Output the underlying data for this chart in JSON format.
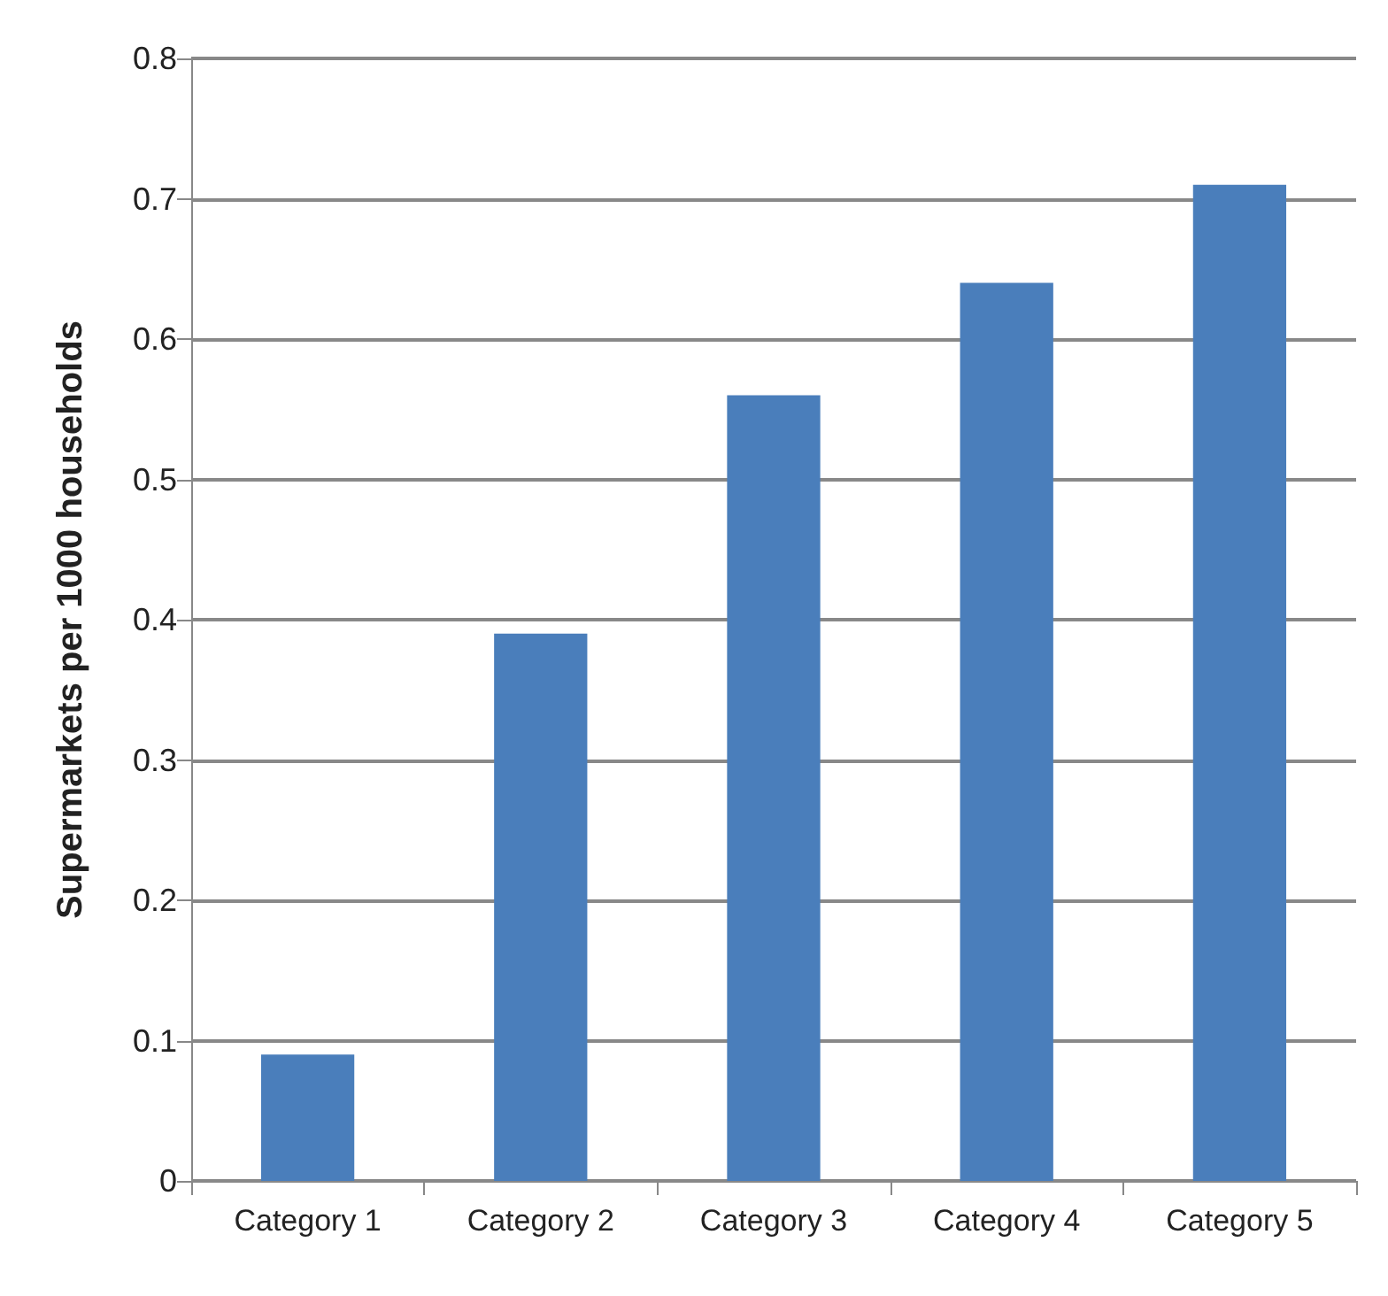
{
  "chart_data": {
    "type": "bar",
    "ylabel": "Supermarkets per 1000 households",
    "categories": [
      "Category 1",
      "Category 2",
      "Category 3",
      "Category 4",
      "Category 5"
    ],
    "values": [
      0.09,
      0.39,
      0.56,
      0.64,
      0.71
    ],
    "color": "#4a7ebb",
    "ylim": [
      0,
      0.8
    ],
    "yticks": [
      0,
      0.1,
      0.2,
      0.3,
      0.4,
      0.5,
      0.6,
      0.7,
      0.8
    ],
    "grid": "y"
  }
}
